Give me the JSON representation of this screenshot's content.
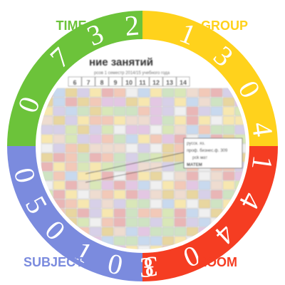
{
  "colors": {
    "time": "#6cc33a",
    "group": "#ffd21c",
    "room": "#f53d22",
    "subject": "#7b8bde",
    "digits": "#ffffff",
    "background": "#ffffff"
  },
  "quadrants": {
    "time": {
      "label": "TIME",
      "digits": [
        "0",
        "7",
        "3",
        "2"
      ]
    },
    "group": {
      "label": "GROUP",
      "digits": [
        "1",
        "3",
        "0",
        "4"
      ]
    },
    "room": {
      "label": "ROOM",
      "digits": [
        "1",
        "4",
        "4",
        "0",
        "3"
      ]
    },
    "subject": {
      "label": "SUBJECT",
      "digits": [
        "0",
        "5",
        "0",
        "1",
        "0",
        "3"
      ]
    }
  },
  "schedule": {
    "title": "ние занятий",
    "subtitle": "рсов 1 семестр 2014/15 учебного года",
    "header_numbers": [
      "6",
      "7",
      "8",
      "9",
      "10",
      "11",
      "12",
      "13",
      "14"
    ],
    "callout_lines": [
      "русск. яз.",
      "проф. бизнес.ф. 309",
      "pck мат",
      "МАТЕМ"
    ]
  }
}
